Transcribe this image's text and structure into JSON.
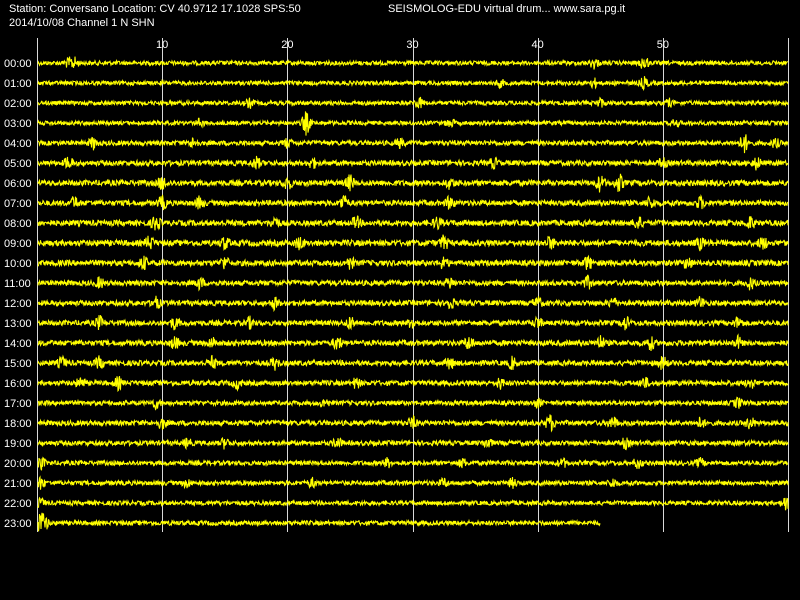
{
  "header": {
    "station_line": "Station: Conversano Location: CV 40.9712 17.1028 SPS:50",
    "date_line": "2014/10/08  Channel 1 N SHN",
    "brand_line": "SEISMOLOG-EDU virtual drum... www.sara.pg.it"
  },
  "colors": {
    "background": "#000000",
    "trace": "#ffff00",
    "grid": "#ffffff",
    "text": "#ffffff"
  },
  "chart_data": {
    "type": "line",
    "title": "",
    "xlabel": "",
    "ylabel": "",
    "x_tick_labels": [
      "10",
      "20",
      "30",
      "40",
      "50"
    ],
    "x_ticks": [
      10,
      20,
      30,
      40,
      50
    ],
    "xlim": [
      0,
      60
    ],
    "row_labels": [
      "00:00",
      "01:00",
      "02:00",
      "03:00",
      "04:00",
      "05:00",
      "06:00",
      "07:00",
      "08:00",
      "09:00",
      "10:00",
      "11:00",
      "12:00",
      "13:00",
      "14:00",
      "15:00",
      "16:00",
      "17:00",
      "18:00",
      "19:00",
      "20:00",
      "21:00",
      "22:00",
      "23:00"
    ],
    "grid": true,
    "last_row_end_minute": 45,
    "rows": [
      {
        "label": "00:00",
        "noise": 0.25,
        "events": [
          [
            3,
            0.7
          ],
          [
            44.5,
            0.7
          ],
          [
            48.5,
            1.0
          ],
          [
            2.5,
            0.6
          ]
        ]
      },
      {
        "label": "01:00",
        "noise": 0.22,
        "events": [
          [
            44.5,
            0.6
          ],
          [
            48.5,
            0.8
          ],
          [
            37,
            0.5
          ]
        ]
      },
      {
        "label": "02:00",
        "noise": 0.22,
        "events": [
          [
            30.5,
            0.8
          ],
          [
            17,
            0.6
          ],
          [
            45,
            0.6
          ],
          [
            50.5,
            0.5
          ]
        ]
      },
      {
        "label": "03:00",
        "noise": 0.2,
        "events": [
          [
            21.5,
            1.6
          ],
          [
            13,
            0.5
          ],
          [
            33,
            0.6
          ],
          [
            51,
            0.5
          ]
        ]
      },
      {
        "label": "04:00",
        "noise": 0.35,
        "events": [
          [
            4.5,
            0.8
          ],
          [
            12.5,
            0.7
          ],
          [
            56.5,
            1.3
          ],
          [
            20,
            0.6
          ],
          [
            29,
            0.6
          ],
          [
            59,
            0.6
          ]
        ]
      },
      {
        "label": "05:00",
        "noise": 0.45,
        "events": [
          [
            2.5,
            0.8
          ],
          [
            17.5,
            0.8
          ],
          [
            22,
            0.7
          ],
          [
            36.5,
            0.7
          ],
          [
            50,
            0.6
          ],
          [
            57.5,
            0.8
          ]
        ]
      },
      {
        "label": "06:00",
        "noise": 0.55,
        "events": [
          [
            10,
            0.9
          ],
          [
            20,
            0.9
          ],
          [
            25,
            1.0
          ],
          [
            45,
            1.1
          ],
          [
            46.5,
            1.2
          ],
          [
            33,
            0.7
          ]
        ]
      },
      {
        "label": "07:00",
        "noise": 0.5,
        "events": [
          [
            3,
            0.8
          ],
          [
            10,
            0.9
          ],
          [
            13,
            0.8
          ],
          [
            24.5,
            1.0
          ],
          [
            33,
            0.9
          ],
          [
            49,
            0.8
          ],
          [
            53,
            0.8
          ]
        ]
      },
      {
        "label": "08:00",
        "noise": 0.55,
        "events": [
          [
            9.5,
            1.0
          ],
          [
            19,
            0.8
          ],
          [
            25.5,
            0.8
          ],
          [
            32,
            0.8
          ],
          [
            48,
            0.9
          ],
          [
            57,
            0.8
          ]
        ]
      },
      {
        "label": "09:00",
        "noise": 0.6,
        "events": [
          [
            9,
            0.9
          ],
          [
            15,
            0.8
          ],
          [
            21,
            0.8
          ],
          [
            32.5,
            0.9
          ],
          [
            41,
            0.8
          ],
          [
            53,
            0.8
          ],
          [
            58,
            0.8
          ]
        ]
      },
      {
        "label": "10:00",
        "noise": 0.55,
        "events": [
          [
            8.5,
            0.9
          ],
          [
            15,
            0.8
          ],
          [
            25,
            0.8
          ],
          [
            32.5,
            0.8
          ],
          [
            44,
            0.9
          ],
          [
            52,
            0.8
          ]
        ]
      },
      {
        "label": "11:00",
        "noise": 0.45,
        "events": [
          [
            5,
            0.7
          ],
          [
            13,
            0.8
          ],
          [
            33,
            0.7
          ],
          [
            44,
            0.8
          ],
          [
            57,
            0.8
          ]
        ]
      },
      {
        "label": "12:00",
        "noise": 0.45,
        "events": [
          [
            9.5,
            0.8
          ],
          [
            19,
            0.8
          ],
          [
            33,
            0.8
          ],
          [
            40,
            0.8
          ],
          [
            46,
            0.7
          ],
          [
            53,
            0.8
          ]
        ]
      },
      {
        "label": "13:00",
        "noise": 0.45,
        "events": [
          [
            5,
            0.9
          ],
          [
            11,
            0.8
          ],
          [
            17,
            0.7
          ],
          [
            25,
            0.8
          ],
          [
            30,
            0.7
          ],
          [
            40,
            0.8
          ],
          [
            47,
            0.9
          ],
          [
            56,
            0.8
          ]
        ]
      },
      {
        "label": "14:00",
        "noise": 0.5,
        "events": [
          [
            11,
            0.8
          ],
          [
            14,
            0.7
          ],
          [
            24,
            0.9
          ],
          [
            34.5,
            0.9
          ],
          [
            45,
            0.9
          ],
          [
            49,
            0.9
          ],
          [
            56,
            0.8
          ]
        ]
      },
      {
        "label": "15:00",
        "noise": 0.45,
        "events": [
          [
            2,
            0.8
          ],
          [
            5,
            0.8
          ],
          [
            14,
            0.8
          ],
          [
            19,
            0.8
          ],
          [
            33,
            0.8
          ],
          [
            38,
            0.8
          ],
          [
            50,
            0.9
          ]
        ]
      },
      {
        "label": "16:00",
        "noise": 0.4,
        "events": [
          [
            3.5,
            0.8
          ],
          [
            6.5,
            0.8
          ],
          [
            16,
            0.7
          ],
          [
            25.5,
            0.7
          ],
          [
            37,
            0.7
          ],
          [
            48.5,
            0.8
          ],
          [
            57,
            0.7
          ]
        ]
      },
      {
        "label": "17:00",
        "noise": 0.3,
        "events": [
          [
            9.5,
            0.7
          ],
          [
            23,
            0.6
          ],
          [
            40,
            0.6
          ],
          [
            56,
            0.7
          ]
        ]
      },
      {
        "label": "18:00",
        "noise": 0.4,
        "events": [
          [
            10,
            0.8
          ],
          [
            30,
            0.8
          ],
          [
            41,
            1.1
          ],
          [
            46,
            0.9
          ],
          [
            53,
            0.7
          ],
          [
            57,
            0.8
          ]
        ]
      },
      {
        "label": "19:00",
        "noise": 0.35,
        "events": [
          [
            12,
            0.6
          ],
          [
            15,
            0.7
          ],
          [
            24,
            0.7
          ],
          [
            36,
            0.7
          ],
          [
            47,
            0.7
          ]
        ]
      },
      {
        "label": "20:00",
        "noise": 0.3,
        "events": [
          [
            0.3,
            0.9
          ],
          [
            28,
            0.6
          ],
          [
            34,
            0.6
          ],
          [
            42,
            0.6
          ],
          [
            48,
            0.7
          ],
          [
            53,
            0.6
          ]
        ]
      },
      {
        "label": "21:00",
        "noise": 0.3,
        "events": [
          [
            0.3,
            0.8
          ],
          [
            12,
            0.6
          ],
          [
            22,
            0.6
          ],
          [
            32.5,
            0.6
          ],
          [
            38,
            0.6
          ],
          [
            46,
            0.6
          ]
        ]
      },
      {
        "label": "22:00",
        "noise": 0.25,
        "events": [
          [
            0.3,
            0.6
          ],
          [
            59.8,
            1.0
          ]
        ]
      },
      {
        "label": "23:00",
        "noise": 0.3,
        "events": [
          [
            0.2,
            1.3
          ],
          [
            0.6,
            1.0
          ]
        ]
      }
    ]
  }
}
